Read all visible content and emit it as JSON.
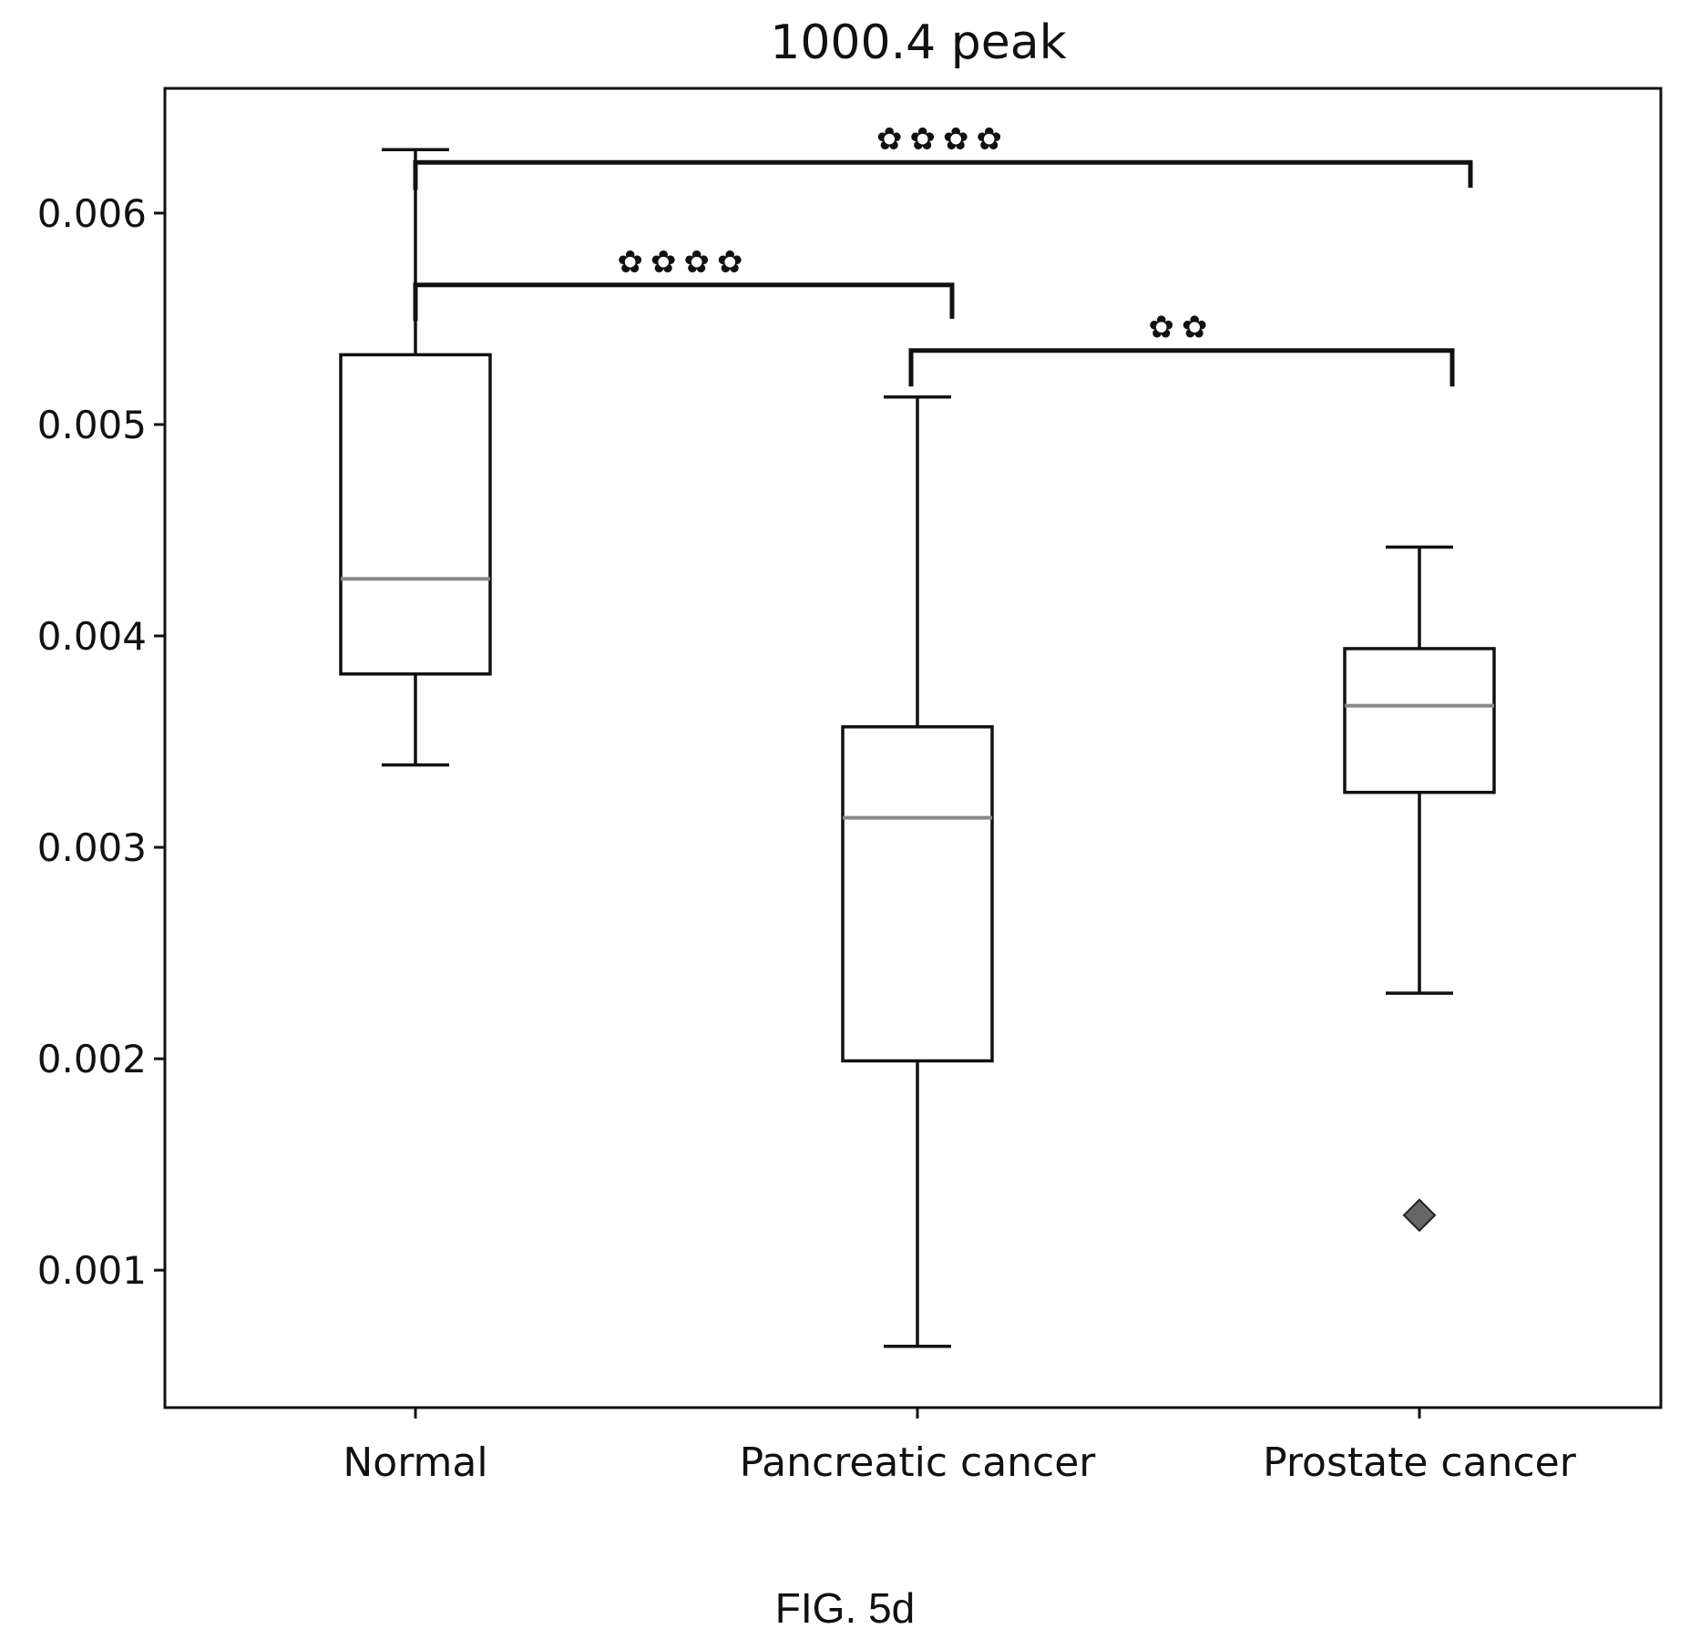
{
  "chart_data": {
    "type": "box",
    "title": "1000.4 peak",
    "xlabel": "",
    "ylabel": "",
    "ylim": [
      0.00035,
      0.00659
    ],
    "y_ticks": [
      {
        "value": 0.001,
        "label": "0.001"
      },
      {
        "value": 0.002,
        "label": "0.002"
      },
      {
        "value": 0.003,
        "label": "0.003"
      },
      {
        "value": 0.004,
        "label": "0.004"
      },
      {
        "value": 0.005,
        "label": "0.005"
      },
      {
        "value": 0.006,
        "label": "0.006"
      }
    ],
    "categories": [
      "Normal",
      "Pancreatic cancer",
      "Prostate cancer"
    ],
    "boxes": [
      {
        "category": "Normal",
        "whisker_low": 0.00339,
        "q1": 0.00382,
        "median": 0.00427,
        "q3": 0.00533,
        "whisker_high": 0.0063,
        "outliers": []
      },
      {
        "category": "Pancreatic cancer",
        "whisker_low": 0.00064,
        "q1": 0.00199,
        "median": 0.00314,
        "q3": 0.00357,
        "whisker_high": 0.00513,
        "outliers": []
      },
      {
        "category": "Prostate cancer",
        "whisker_low": 0.00231,
        "q1": 0.00326,
        "median": 0.00367,
        "q3": 0.00394,
        "whisker_high": 0.00442,
        "outliers": [
          0.00126
        ]
      }
    ],
    "significance": [
      {
        "from": "Normal",
        "to": "Pancreatic cancer",
        "level": 0.00566,
        "label": "✿✿✿✿"
      },
      {
        "from": "Pancreatic cancer",
        "to": "Prostate cancer",
        "level": 0.00535,
        "label": "✿✿"
      },
      {
        "from": "Normal",
        "to": "Prostate cancer",
        "level": 0.00624,
        "label": "✿✿✿✿"
      }
    ],
    "grid": false,
    "colors": {
      "box_edge": "#111111",
      "median": "#888888",
      "outlier": "#666666"
    }
  },
  "figure_caption": "FIG. 5d"
}
